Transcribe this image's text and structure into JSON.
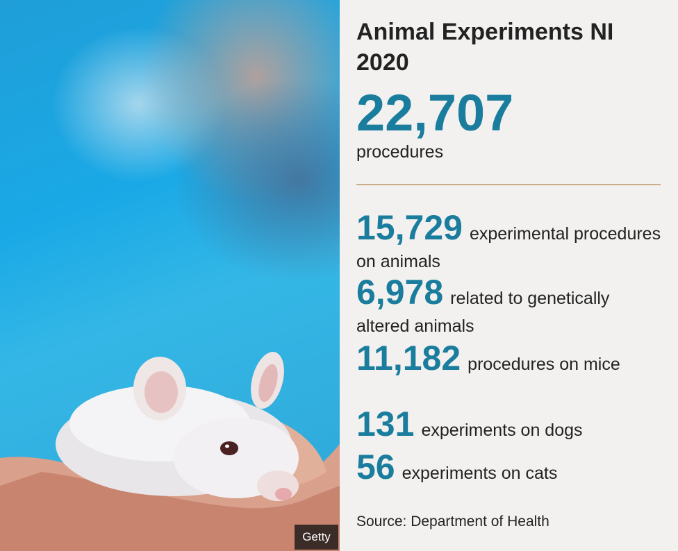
{
  "photo": {
    "credit": "Getty",
    "subject-icon": "white-mouse-on-hand"
  },
  "colors": {
    "accent": "#1a7d9e",
    "divider": "#c9b08a",
    "background": "#f2f1ef",
    "text": "#222222"
  },
  "infographic": {
    "title": "Animal Experiments NI 2020",
    "total_value": "22,707",
    "total_label": "procedures",
    "stats": [
      {
        "value": "15,729",
        "label": "experimental procedures on animals"
      },
      {
        "value": "6,978",
        "label": "related to genetically altered animals"
      },
      {
        "value": "11,182",
        "label": "procedures on mice"
      },
      {
        "value": "131",
        "label": "experiments on dogs"
      },
      {
        "value": "56",
        "label": "experiments on cats"
      }
    ],
    "source": "Source: Department of Health"
  }
}
